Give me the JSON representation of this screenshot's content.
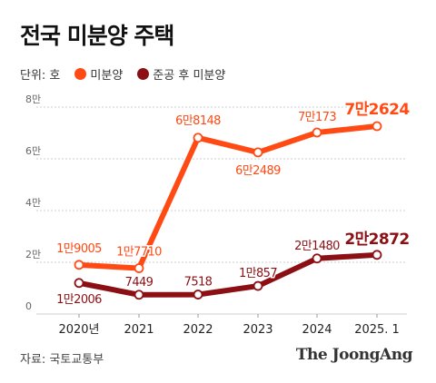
{
  "title": "전국 미분양 주택",
  "legend": {
    "unit": "단위: 호",
    "items": [
      {
        "label": "미분양",
        "color": "#ff4a14"
      },
      {
        "label": "준공 후 미분양",
        "color": "#8c0f14"
      }
    ]
  },
  "chart_data": {
    "type": "line",
    "categories": [
      "2020년",
      "2021",
      "2022",
      "2023",
      "2024",
      "2025. 1"
    ],
    "ylim": [
      0,
      80000
    ],
    "y_ticks": [
      {
        "value": 0,
        "label": "0"
      },
      {
        "value": 20000,
        "label": "2만"
      },
      {
        "value": 40000,
        "label": "4만"
      },
      {
        "value": 60000,
        "label": "6만"
      },
      {
        "value": 80000,
        "label": "8만"
      }
    ],
    "grid": true,
    "series": [
      {
        "name": "미분양",
        "color": "#ff4a14",
        "values": [
          19005,
          17710,
          68148,
          62489,
          70173,
          72624
        ],
        "labels": [
          "1만9005",
          "1만7710",
          "6만8148",
          "6만2489",
          "7만173",
          "7만2624"
        ]
      },
      {
        "name": "준공 후 미분양",
        "color": "#8c0f14",
        "values": [
          12006,
          7449,
          7518,
          10857,
          21480,
          22872
        ],
        "labels": [
          "1만2006",
          "7449",
          "7518",
          "1만857",
          "2만1480",
          "2만2872"
        ]
      }
    ]
  },
  "footer": {
    "source": "자료: 국토교통부",
    "logo": "The JoongAng"
  }
}
